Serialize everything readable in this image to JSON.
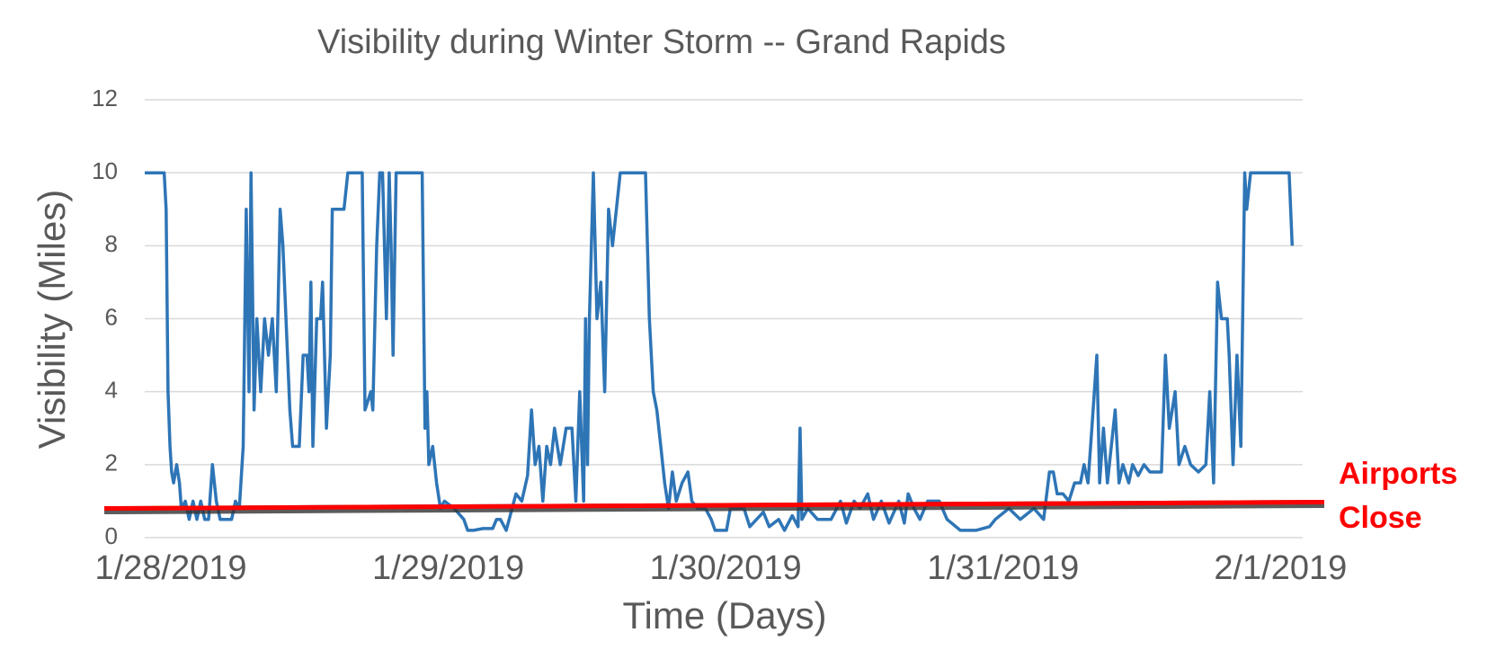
{
  "chart_data": {
    "type": "line",
    "title": "Visibility during Winter Storm -- Grand Rapids",
    "x_label": "Time (Days)",
    "y_label": "Visibility (Miles)",
    "xlim": [
      -0.094,
      4.08
    ],
    "xticks": [
      {
        "value": 0,
        "label": "1/28/2019"
      },
      {
        "value": 1,
        "label": "1/29/2019"
      },
      {
        "value": 2,
        "label": "1/30/2019"
      },
      {
        "value": 3,
        "label": "1/31/2019"
      },
      {
        "value": 4,
        "label": "2/1/2019"
      }
    ],
    "ylim": [
      0,
      12
    ],
    "yticks": [
      0,
      2,
      4,
      6,
      8,
      10,
      12
    ],
    "grid": true,
    "series": [
      {
        "color": "#2e75b6",
        "x": [
          -0.094,
          -0.024,
          -0.017,
          -0.01,
          -0.003,
          0.003,
          0.01,
          0.021,
          0.031,
          0.038,
          0.052,
          0.066,
          0.08,
          0.094,
          0.108,
          0.122,
          0.136,
          0.15,
          0.164,
          0.178,
          0.219,
          0.233,
          0.247,
          0.261,
          0.272,
          0.282,
          0.289,
          0.3,
          0.31,
          0.324,
          0.338,
          0.352,
          0.366,
          0.38,
          0.394,
          0.404,
          0.415,
          0.429,
          0.439,
          0.463,
          0.477,
          0.491,
          0.498,
          0.505,
          0.512,
          0.526,
          0.54,
          0.547,
          0.561,
          0.575,
          0.582,
          0.624,
          0.638,
          0.69,
          0.7,
          0.721,
          0.728,
          0.742,
          0.753,
          0.763,
          0.777,
          0.787,
          0.794,
          0.801,
          0.812,
          0.906,
          0.916,
          0.923,
          0.93,
          0.944,
          0.958,
          0.972,
          0.986,
          1.021,
          1.056,
          1.07,
          1.091,
          1.125,
          1.16,
          1.174,
          1.188,
          1.209,
          1.23,
          1.244,
          1.265,
          1.286,
          1.3,
          1.313,
          1.327,
          1.341,
          1.355,
          1.369,
          1.383,
          1.404,
          1.425,
          1.446,
          1.46,
          1.474,
          1.488,
          1.495,
          1.502,
          1.509,
          1.523,
          1.536,
          1.55,
          1.564,
          1.578,
          1.592,
          1.606,
          1.62,
          1.711,
          1.725,
          1.739,
          1.752,
          1.766,
          1.78,
          1.794,
          1.808,
          1.822,
          1.843,
          1.864,
          1.878,
          1.899,
          1.927,
          1.948,
          1.962,
          2.003,
          2.017,
          2.066,
          2.087,
          2.136,
          2.157,
          2.191,
          2.212,
          2.24,
          2.261,
          2.268,
          2.275,
          2.296,
          2.331,
          2.38,
          2.414,
          2.435,
          2.463,
          2.484,
          2.512,
          2.533,
          2.561,
          2.589,
          2.624,
          2.644,
          2.658,
          2.679,
          2.7,
          2.728,
          2.77,
          2.798,
          2.846,
          2.902,
          2.951,
          2.972,
          3.021,
          3.062,
          3.111,
          3.146,
          3.167,
          3.181,
          3.195,
          3.216,
          3.237,
          3.258,
          3.279,
          3.292,
          3.306,
          3.32,
          3.338,
          3.348,
          3.362,
          3.376,
          3.39,
          3.404,
          3.418,
          3.432,
          3.453,
          3.467,
          3.487,
          3.508,
          3.529,
          3.55,
          3.571,
          3.585,
          3.599,
          3.62,
          3.634,
          3.655,
          3.676,
          3.704,
          3.731,
          3.745,
          3.759,
          3.773,
          3.787,
          3.808,
          3.815,
          3.829,
          3.843,
          3.857,
          3.871,
          3.878,
          3.892,
          4.031,
          4.042
        ],
        "values": [
          10,
          10,
          9,
          4,
          2.5,
          1.8,
          1.5,
          2,
          1.5,
          0.8,
          1,
          0.5,
          1,
          0.5,
          1,
          0.5,
          0.5,
          2,
          1,
          0.5,
          0.5,
          1,
          0.8,
          2.5,
          9,
          4,
          10,
          3.5,
          6,
          4,
          6,
          5,
          6,
          4,
          9,
          8,
          6,
          3.5,
          2.5,
          2.5,
          5,
          5,
          4,
          7,
          2.5,
          6,
          6,
          7,
          3,
          5,
          9,
          9,
          10,
          10,
          3.5,
          4,
          3.5,
          8,
          10,
          10,
          6,
          10,
          8,
          5,
          10,
          10,
          3,
          4,
          2,
          2.5,
          1.5,
          0.8,
          1,
          0.8,
          0.5,
          0.2,
          0.2,
          0.25,
          0.25,
          0.5,
          0.5,
          0.2,
          0.8,
          1.2,
          1,
          1.7,
          3.5,
          2,
          2.5,
          1,
          2.5,
          2,
          3,
          2,
          3,
          3,
          1,
          4,
          1,
          6,
          2,
          6,
          10,
          6,
          7,
          4,
          9,
          8,
          9,
          10,
          10,
          6,
          4,
          3.5,
          2.5,
          1.5,
          0.8,
          1.8,
          1,
          1.5,
          1.8,
          1,
          0.8,
          0.8,
          0.5,
          0.2,
          0.2,
          0.8,
          0.8,
          0.3,
          0.7,
          0.3,
          0.5,
          0.2,
          0.6,
          0.3,
          3,
          0.5,
          0.8,
          0.5,
          0.5,
          1,
          0.4,
          1,
          0.8,
          1.2,
          0.5,
          1,
          0.4,
          1,
          0.4,
          1.2,
          0.8,
          0.5,
          1,
          1,
          0.5,
          0.2,
          0.2,
          0.3,
          0.5,
          0.8,
          0.5,
          0.8,
          0.5,
          1.8,
          1.8,
          1.2,
          1.2,
          1,
          1.5,
          1.5,
          2,
          1.5,
          3,
          5,
          1.5,
          3,
          1.5,
          2.5,
          3.5,
          1.5,
          2,
          1.5,
          2,
          1.7,
          2,
          1.8,
          1.8,
          1.8,
          5,
          3,
          4,
          2,
          2.5,
          2,
          1.8,
          2,
          4,
          1.5,
          7,
          6,
          6,
          5,
          2,
          5,
          2.5,
          10,
          9,
          10,
          10,
          8
        ]
      }
    ],
    "annotation": {
      "lines": [
        "Airports",
        "Close"
      ],
      "y": 0.8,
      "color": "#ff0000"
    }
  }
}
